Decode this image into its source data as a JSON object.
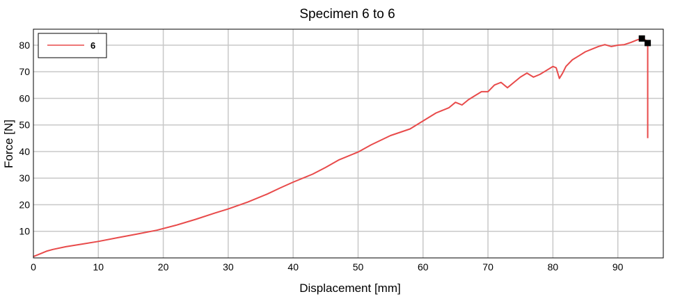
{
  "chart_data": {
    "type": "line",
    "title": "Specimen 6 to 6",
    "xlabel": "Displacement [mm]",
    "ylabel": "Force [N]",
    "xlim": [
      0,
      97
    ],
    "ylim": [
      0,
      86
    ],
    "xticks": [
      0,
      10,
      20,
      30,
      40,
      50,
      60,
      70,
      80,
      90
    ],
    "yticks": [
      10,
      20,
      30,
      40,
      50,
      60,
      70,
      80
    ],
    "grid": true,
    "legend_position": "top-left",
    "colors": {
      "series": "#e84a4a",
      "grid": "#c8c8c8",
      "frame": "#000000",
      "marker": "#000000"
    },
    "series": [
      {
        "name": "6",
        "x": [
          0,
          1,
          2,
          3,
          5,
          7,
          10,
          13,
          16,
          19,
          22,
          25,
          28,
          30,
          33,
          36,
          38,
          40,
          43,
          45,
          47,
          50,
          52,
          55,
          58,
          60,
          62,
          64,
          65,
          66,
          67,
          68,
          69,
          70,
          71,
          72,
          73,
          74,
          75,
          76,
          77,
          78,
          79,
          80,
          80.5,
          81,
          81.5,
          82,
          83,
          84,
          85,
          86,
          87,
          88,
          89,
          90,
          91,
          92,
          93,
          93.7,
          94.6,
          94.6,
          94.6
        ],
        "y": [
          0.5,
          1.5,
          2.5,
          3.2,
          4.2,
          5.0,
          6.2,
          7.6,
          9.0,
          10.4,
          12.3,
          14.5,
          16.9,
          18.4,
          21.0,
          24.0,
          26.3,
          28.5,
          31.5,
          34.0,
          36.8,
          39.8,
          42.5,
          46.0,
          48.5,
          51.5,
          54.5,
          56.5,
          58.5,
          57.5,
          59.5,
          61.0,
          62.5,
          62.5,
          65.0,
          66.0,
          64.0,
          66.0,
          68.0,
          69.5,
          68.0,
          69.0,
          70.5,
          72.0,
          71.5,
          67.5,
          69.5,
          72.0,
          74.5,
          76.0,
          77.5,
          78.5,
          79.5,
          80.2,
          79.5,
          80.0,
          80.2,
          81.0,
          82.0,
          82.5,
          81.5,
          65.0,
          45.0
        ]
      }
    ],
    "markers": [
      {
        "x": 93.7,
        "y": 82.5
      },
      {
        "x": 94.6,
        "y": 80.8
      }
    ]
  }
}
